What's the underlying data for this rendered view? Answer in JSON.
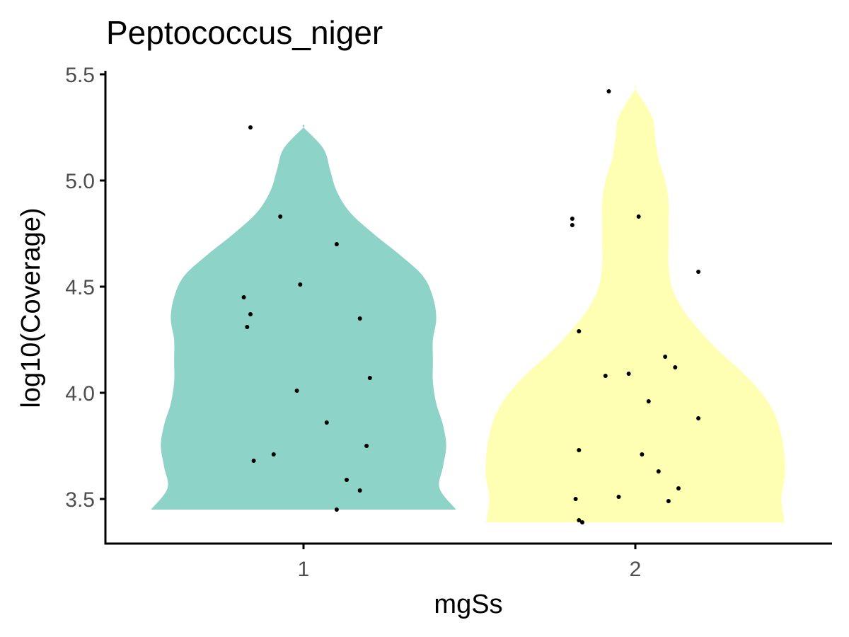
{
  "chart_data": {
    "type": "violin",
    "title": "Peptococcus_niger",
    "xlabel": "mgSs",
    "ylabel": "log10(Coverage)",
    "categories": [
      "1",
      "2"
    ],
    "ylim": [
      3.3,
      5.52
    ],
    "yticks": [
      "3.5",
      "4.0",
      "4.5",
      "5.0",
      "5.5"
    ],
    "colors": {
      "1": "#8ED3C7",
      "2": "#FFFFB3"
    },
    "grid": false,
    "violins": [
      {
        "category": "1",
        "y_range": [
          3.45,
          5.25
        ],
        "density": [
          {
            "y": 3.45,
            "w": 0.46
          },
          {
            "y": 3.55,
            "w": 0.41
          },
          {
            "y": 3.65,
            "w": 0.42
          },
          {
            "y": 3.75,
            "w": 0.43
          },
          {
            "y": 3.85,
            "w": 0.42
          },
          {
            "y": 3.95,
            "w": 0.4
          },
          {
            "y": 4.05,
            "w": 0.39
          },
          {
            "y": 4.15,
            "w": 0.39
          },
          {
            "y": 4.25,
            "w": 0.39
          },
          {
            "y": 4.35,
            "w": 0.4
          },
          {
            "y": 4.45,
            "w": 0.39
          },
          {
            "y": 4.55,
            "w": 0.36
          },
          {
            "y": 4.65,
            "w": 0.29
          },
          {
            "y": 4.75,
            "w": 0.21
          },
          {
            "y": 4.85,
            "w": 0.14
          },
          {
            "y": 4.95,
            "w": 0.1
          },
          {
            "y": 5.05,
            "w": 0.08
          },
          {
            "y": 5.15,
            "w": 0.06
          },
          {
            "y": 5.25,
            "w": 0.0
          }
        ],
        "points": [
          {
            "x": 0.84,
            "y": 5.25
          },
          {
            "x": 0.93,
            "y": 4.83
          },
          {
            "x": 1.1,
            "y": 4.7
          },
          {
            "x": 0.99,
            "y": 4.51
          },
          {
            "x": 0.82,
            "y": 4.45
          },
          {
            "x": 0.84,
            "y": 4.37
          },
          {
            "x": 1.17,
            "y": 4.35
          },
          {
            "x": 0.83,
            "y": 4.31
          },
          {
            "x": 1.2,
            "y": 4.07
          },
          {
            "x": 0.98,
            "y": 4.01
          },
          {
            "x": 1.07,
            "y": 3.86
          },
          {
            "x": 1.19,
            "y": 3.75
          },
          {
            "x": 0.91,
            "y": 3.71
          },
          {
            "x": 0.85,
            "y": 3.68
          },
          {
            "x": 1.13,
            "y": 3.59
          },
          {
            "x": 1.17,
            "y": 3.54
          },
          {
            "x": 1.1,
            "y": 3.45
          }
        ]
      },
      {
        "category": "2",
        "y_range": [
          3.39,
          5.43
        ],
        "density": [
          {
            "y": 3.39,
            "w": 0.45
          },
          {
            "y": 3.5,
            "w": 0.44
          },
          {
            "y": 3.6,
            "w": 0.45
          },
          {
            "y": 3.7,
            "w": 0.45
          },
          {
            "y": 3.8,
            "w": 0.44
          },
          {
            "y": 3.9,
            "w": 0.42
          },
          {
            "y": 4.0,
            "w": 0.38
          },
          {
            "y": 4.1,
            "w": 0.32
          },
          {
            "y": 4.2,
            "w": 0.25
          },
          {
            "y": 4.3,
            "w": 0.19
          },
          {
            "y": 4.4,
            "w": 0.14
          },
          {
            "y": 4.5,
            "w": 0.11
          },
          {
            "y": 4.6,
            "w": 0.1
          },
          {
            "y": 4.7,
            "w": 0.1
          },
          {
            "y": 4.8,
            "w": 0.1
          },
          {
            "y": 4.9,
            "w": 0.1
          },
          {
            "y": 5.0,
            "w": 0.09
          },
          {
            "y": 5.1,
            "w": 0.07
          },
          {
            "y": 5.2,
            "w": 0.06
          },
          {
            "y": 5.3,
            "w": 0.05
          },
          {
            "y": 5.43,
            "w": 0.0
          }
        ],
        "points": [
          {
            "x": 1.92,
            "y": 5.42
          },
          {
            "x": 1.81,
            "y": 4.82
          },
          {
            "x": 2.01,
            "y": 4.83
          },
          {
            "x": 1.81,
            "y": 4.79
          },
          {
            "x": 2.19,
            "y": 4.57
          },
          {
            "x": 1.83,
            "y": 4.29
          },
          {
            "x": 2.09,
            "y": 4.17
          },
          {
            "x": 2.12,
            "y": 4.12
          },
          {
            "x": 1.98,
            "y": 4.09
          },
          {
            "x": 1.91,
            "y": 4.08
          },
          {
            "x": 2.04,
            "y": 3.96
          },
          {
            "x": 2.19,
            "y": 3.88
          },
          {
            "x": 1.83,
            "y": 3.73
          },
          {
            "x": 2.02,
            "y": 3.71
          },
          {
            "x": 2.07,
            "y": 3.63
          },
          {
            "x": 2.13,
            "y": 3.55
          },
          {
            "x": 1.95,
            "y": 3.51
          },
          {
            "x": 1.82,
            "y": 3.5
          },
          {
            "x": 2.1,
            "y": 3.49
          },
          {
            "x": 1.83,
            "y": 3.4
          },
          {
            "x": 1.84,
            "y": 3.39
          }
        ]
      }
    ]
  }
}
